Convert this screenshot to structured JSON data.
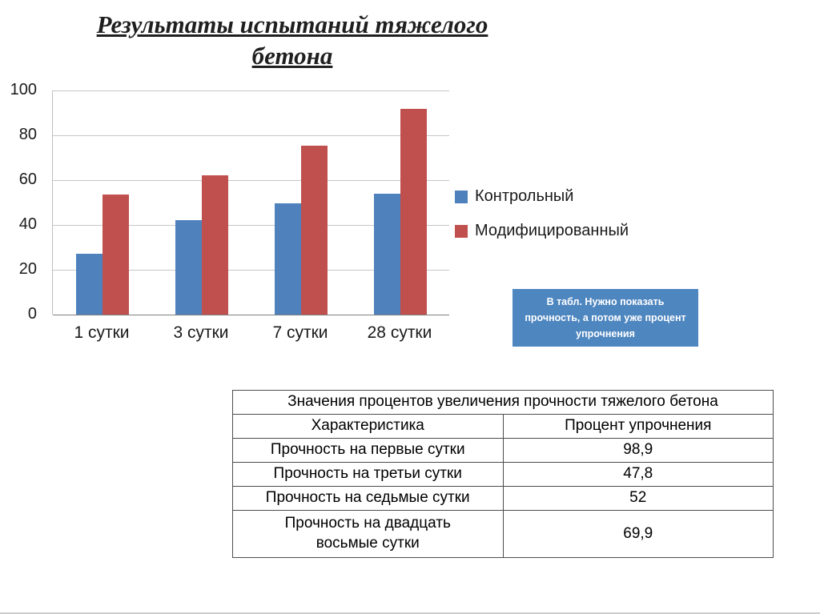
{
  "page": {
    "title": "Результаты испытаний тяжелого бетона"
  },
  "chart_data": {
    "type": "bar",
    "title": "Результаты испытаний тяжелого бетона",
    "categories": [
      "1 сутки",
      "3 сутки",
      "7 сутки",
      "28 сутки"
    ],
    "series": [
      {
        "name": "Контрольный",
        "color": "#4f81bd",
        "values": [
          27,
          42,
          49.5,
          54
        ]
      },
      {
        "name": "Модифицированный",
        "color": "#c0504d",
        "values": [
          53.7,
          62.1,
          75.2,
          91.7
        ]
      }
    ],
    "xlabel": "",
    "ylabel": "",
    "ylim": [
      0,
      100
    ],
    "yticks": [
      0,
      20,
      40,
      60,
      80,
      100
    ],
    "grid": true,
    "legend_position": "right"
  },
  "callout": {
    "text": "В табл. Нужно показать прочность, а потом уже процент упрочнения",
    "bg_color": "#4e86c0",
    "text_color": "#ffffff"
  },
  "table": {
    "title": "Значения процентов увеличения прочности тяжелого бетона",
    "columns": [
      "Характеристика",
      "Процент упрочнения"
    ],
    "rows": [
      {
        "characteristic": "Прочность на первые сутки",
        "value": "98,9"
      },
      {
        "characteristic": "Прочность на третьи сутки",
        "value": "47,8"
      },
      {
        "characteristic": "Прочность на седьмые сутки",
        "value": "52"
      },
      {
        "characteristic": "Прочность на двадцать восьмые сутки",
        "value": "69,9"
      }
    ]
  }
}
